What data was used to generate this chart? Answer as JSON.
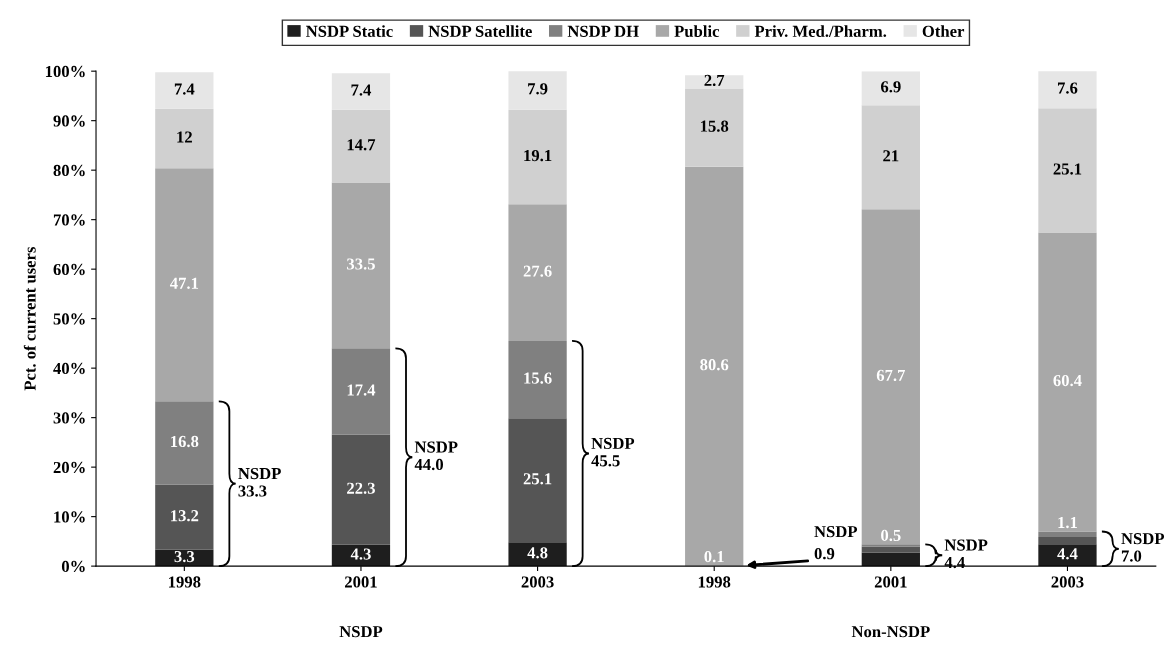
{
  "chart_data": {
    "type": "bar",
    "stacked": true,
    "ylabel": "Pct. of current users",
    "categories": [
      "1998",
      "2001",
      "2003",
      "1998",
      "2001",
      "2003"
    ],
    "series": [
      {
        "name": "NSDP Static",
        "color": "#1e1e1e",
        "values": [
          3.3,
          4.3,
          4.8,
          null,
          2.7,
          4.4
        ],
        "value_labels": [
          "3.3",
          "4.3",
          "4.8",
          null,
          null,
          "4.4"
        ]
      },
      {
        "name": "NSDP Satellite",
        "color": "#555555",
        "values": [
          13.2,
          22.3,
          25.1,
          null,
          1.2,
          1.5
        ],
        "value_labels": [
          "13.2",
          "22.3",
          "25.1",
          null,
          null,
          null
        ]
      },
      {
        "name": "NSDP DH",
        "color": "#808080",
        "values": [
          16.8,
          17.4,
          15.6,
          0.1,
          0.5,
          1.1
        ],
        "value_labels": [
          "16.8",
          "17.4",
          "15.6",
          "0.1",
          "0.5",
          "1.1"
        ]
      },
      {
        "name": "Public",
        "color": "#a8a8a8",
        "values": [
          47.1,
          33.5,
          27.6,
          80.6,
          67.7,
          60.4
        ],
        "value_labels": [
          "47.1",
          "33.5",
          "27.6",
          "80.6",
          "67.7",
          "60.4"
        ]
      },
      {
        "name": "Priv. Med./Pharm.",
        "color": "#d0d0d0",
        "values": [
          12,
          14.7,
          19.1,
          15.8,
          21,
          25.1
        ],
        "value_labels": [
          "12",
          "14.7",
          "19.1",
          "15.8",
          "21",
          "25.1"
        ]
      },
      {
        "name": "Other",
        "color": "#e6e6e6",
        "values": [
          7.4,
          7.4,
          7.9,
          2.7,
          6.9,
          7.6
        ],
        "value_labels": [
          "7.4",
          "7.4",
          "7.9",
          "2.7",
          "6.9",
          "7.6"
        ]
      }
    ],
    "ylim": [
      0,
      100
    ],
    "yticks": [
      {
        "value": 0,
        "label": "0%"
      },
      {
        "value": 10,
        "label": "10%"
      },
      {
        "value": 20,
        "label": "20%"
      },
      {
        "value": 30,
        "label": "30%"
      },
      {
        "value": 40,
        "label": "40%"
      },
      {
        "value": 50,
        "label": "50%"
      },
      {
        "value": 60,
        "label": "60%"
      },
      {
        "value": 70,
        "label": "70%"
      },
      {
        "value": 80,
        "label": "80%"
      },
      {
        "value": 90,
        "label": "90%"
      },
      {
        "value": 100,
        "label": "100%"
      }
    ],
    "grid": false,
    "legend": "top",
    "annotations": [
      "NSDP\n33.3",
      "NSDP\n44.0",
      "NSDP\n45.5",
      "NSDP\n0.9",
      "NSDP\n4.4",
      "NSDP\n7.0",
      "NSDP",
      "Non-NSDP"
    ]
  }
}
